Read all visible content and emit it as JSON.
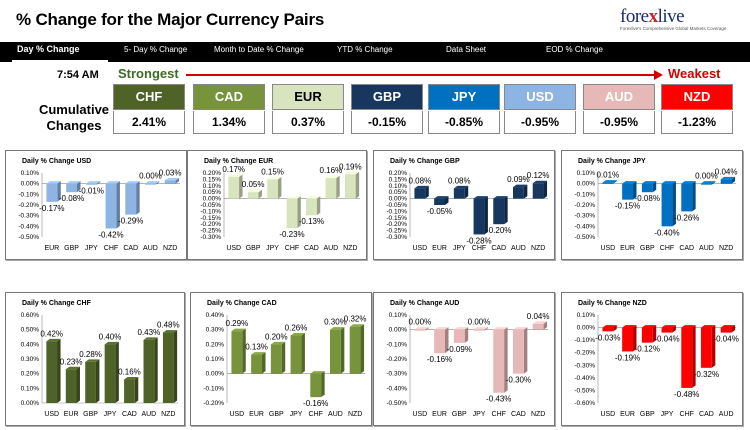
{
  "header": {
    "title": "% Change for the Major Currency Pairs",
    "logo_text": "forexlive",
    "logo_tagline": "Forexlive's Comprehensive Global Markets Coverage"
  },
  "tabs": [
    {
      "label": "Day % Change",
      "active": true
    },
    {
      "label": "5- Day % Change"
    },
    {
      "label": "Month to Date % Change"
    },
    {
      "label": "YTD % Change"
    },
    {
      "label": "Data Sheet"
    },
    {
      "label": "EOD % Change"
    }
  ],
  "summary": {
    "time": "7:54 AM",
    "strongest_label": "Strongest",
    "weakest_label": "Weakest",
    "cumulative_label": "Cumulative Changes",
    "currencies": [
      {
        "code": "CHF",
        "value": "2.41%",
        "color": "#4f6228",
        "light": false
      },
      {
        "code": "CAD",
        "value": "1.34%",
        "color": "#77933c",
        "light": false
      },
      {
        "code": "EUR",
        "value": "0.37%",
        "color": "#d7e4bd",
        "light": true
      },
      {
        "code": "GBP",
        "value": "-0.15%",
        "color": "#17375e",
        "light": false
      },
      {
        "code": "JPY",
        "value": "-0.85%",
        "color": "#0070c0",
        "light": false
      },
      {
        "code": "USD",
        "value": "-0.95%",
        "color": "#8eb4e3",
        "light": false
      },
      {
        "code": "AUD",
        "value": "-0.95%",
        "color": "#e6b9b8",
        "light": false
      },
      {
        "code": "NZD",
        "value": "-1.23%",
        "color": "#ff0000",
        "light": false
      }
    ]
  },
  "chart_data": [
    {
      "type": "bar",
      "title": "Daily % Change USD",
      "categories": [
        "EUR",
        "GBP",
        "JPY",
        "CHF",
        "CAD",
        "AUD",
        "NZD"
      ],
      "values": [
        -0.17,
        -0.08,
        -0.01,
        -0.42,
        -0.29,
        0.0,
        0.03
      ],
      "labels": [
        "-0.17%",
        "-0.08%",
        "-0.01%",
        "-0.42%",
        "-0.29%",
        "0.00%",
        "0.03%"
      ],
      "ylim": [
        -0.5,
        0.1
      ],
      "ticks": [
        0.1,
        0,
        -0.1,
        -0.2,
        -0.3,
        -0.4,
        -0.5
      ],
      "tick_labels": [
        "0.10%",
        "0.00%",
        "-0.10%",
        "-0.20%",
        "-0.30%",
        "-0.40%",
        "-0.50%"
      ],
      "color": "#8eb4e3"
    },
    {
      "type": "bar",
      "title": "Daily % Change EUR",
      "categories": [
        "USD",
        "GBP",
        "JPY",
        "CHF",
        "CAD",
        "AUD",
        "NZD"
      ],
      "values": [
        0.17,
        0.05,
        0.15,
        -0.23,
        -0.13,
        0.16,
        0.19
      ],
      "labels": [
        "0.17%",
        "0.05%",
        "0.15%",
        "-0.23%",
        "-0.13%",
        "0.16%",
        "0.19%"
      ],
      "ylim": [
        -0.3,
        0.2
      ],
      "ticks": [
        0.2,
        0.15,
        0.1,
        0.05,
        0,
        -0.05,
        -0.1,
        -0.15,
        -0.2,
        -0.25,
        -0.3
      ],
      "tick_labels": [
        "0.20%",
        "0.15%",
        "0.10%",
        "0.05%",
        "0.00%",
        "-0.05%",
        "-0.10%",
        "-0.15%",
        "-0.20%",
        "-0.25%",
        "-0.30%"
      ],
      "color": "#d7e4bd"
    },
    {
      "type": "bar",
      "title": "Daily % Change GBP",
      "categories": [
        "USD",
        "EUR",
        "JPY",
        "CHF",
        "CAD",
        "AUD",
        "NZD"
      ],
      "values": [
        0.08,
        -0.05,
        0.08,
        -0.28,
        -0.2,
        0.09,
        0.12
      ],
      "labels": [
        "0.08%",
        "-0.05%",
        "0.08%",
        "-0.28%",
        "-0.20%",
        "0.09%",
        "0.12%"
      ],
      "ylim": [
        -0.3,
        0.2
      ],
      "ticks": [
        0.2,
        0.15,
        0.1,
        0.05,
        0,
        -0.05,
        -0.1,
        -0.15,
        -0.2,
        -0.25,
        -0.3
      ],
      "tick_labels": [
        "0.20%",
        "0.15%",
        "0.10%",
        "0.05%",
        "0.00%",
        "-0.05%",
        "-0.10%",
        "-0.15%",
        "-0.20%",
        "-0.25%",
        "-0.30%"
      ],
      "color": "#17375e"
    },
    {
      "type": "bar",
      "title": "Daily % Change JPY",
      "categories": [
        "USD",
        "EUR",
        "GBP",
        "CHF",
        "CAD",
        "AUD",
        "NZD"
      ],
      "values": [
        0.01,
        -0.15,
        -0.08,
        -0.4,
        -0.26,
        0.0,
        0.04
      ],
      "labels": [
        "0.01%",
        "-0.15%",
        "-0.08%",
        "-0.40%",
        "-0.26%",
        "0.00%",
        "0.04%"
      ],
      "ylim": [
        -0.5,
        0.1
      ],
      "ticks": [
        0.1,
        0,
        -0.1,
        -0.2,
        -0.3,
        -0.4,
        -0.5
      ],
      "tick_labels": [
        "0.10%",
        "0.00%",
        "-0.10%",
        "-0.20%",
        "-0.30%",
        "-0.40%",
        "-0.50%"
      ],
      "color": "#0070c0"
    },
    {
      "type": "bar",
      "title": "Daily % Change CHF",
      "categories": [
        "USD",
        "EUR",
        "GBP",
        "JPY",
        "CAD",
        "AUD",
        "NZD"
      ],
      "values": [
        0.42,
        0.23,
        0.28,
        0.4,
        0.16,
        0.43,
        0.48
      ],
      "labels": [
        "0.42%",
        "0.23%",
        "0.28%",
        "0.40%",
        "0.16%",
        "0.43%",
        "0.48%"
      ],
      "ylim": [
        0,
        0.6
      ],
      "ticks": [
        0.6,
        0.5,
        0.4,
        0.3,
        0.2,
        0.1,
        0
      ],
      "tick_labels": [
        "0.60%",
        "0.50%",
        "0.40%",
        "0.30%",
        "0.20%",
        "0.10%",
        "0.00%"
      ],
      "color": "#4f6228"
    },
    {
      "type": "bar",
      "title": "Daily % Change CAD",
      "categories": [
        "USD",
        "EUR",
        "GBP",
        "JPY",
        "CHF",
        "AUD",
        "NZD"
      ],
      "values": [
        0.29,
        0.13,
        0.2,
        0.26,
        -0.16,
        0.3,
        0.32
      ],
      "labels": [
        "0.29%",
        "0.13%",
        "0.20%",
        "0.26%",
        "-0.16%",
        "0.30%",
        "0.32%"
      ],
      "ylim": [
        -0.2,
        0.4
      ],
      "ticks": [
        0.4,
        0.3,
        0.2,
        0.1,
        0,
        -0.1,
        -0.2
      ],
      "tick_labels": [
        "0.40%",
        "0.30%",
        "0.20%",
        "0.10%",
        "0.00%",
        "-0.10%",
        "-0.20%"
      ],
      "color": "#77933c"
    },
    {
      "type": "bar",
      "title": "Daily % Change AUD",
      "categories": [
        "USD",
        "EUR",
        "GBP",
        "JPY",
        "CHF",
        "CAD",
        "NZD"
      ],
      "values": [
        0.0,
        -0.16,
        -0.09,
        0.0,
        -0.43,
        -0.3,
        0.04
      ],
      "labels": [
        "0.00%",
        "-0.16%",
        "-0.09%",
        "0.00%",
        "-0.43%",
        "-0.30%",
        "0.04%"
      ],
      "ylim": [
        -0.5,
        0.1
      ],
      "ticks": [
        0.1,
        0,
        -0.1,
        -0.2,
        -0.3,
        -0.4,
        -0.5
      ],
      "tick_labels": [
        "0.10%",
        "0.00%",
        "-0.10%",
        "-0.20%",
        "-0.30%",
        "-0.40%",
        "-0.50%"
      ],
      "color": "#e6b9b8"
    },
    {
      "type": "bar",
      "title": "Daily % Change NZD",
      "categories": [
        "USD",
        "EUR",
        "GBP",
        "JPY",
        "CHF",
        "CAD",
        "AUD"
      ],
      "values": [
        -0.03,
        -0.19,
        -0.12,
        -0.04,
        -0.48,
        -0.32,
        -0.04
      ],
      "labels": [
        "-0.03%",
        "-0.19%",
        "-0.12%",
        "-0.04%",
        "-0.48%",
        "-0.32%",
        "-0.04%"
      ],
      "ylim": [
        -0.6,
        0.1
      ],
      "ticks": [
        0.1,
        0,
        -0.1,
        -0.2,
        -0.3,
        -0.4,
        -0.5,
        -0.6
      ],
      "tick_labels": [
        "0.10%",
        "0.00%",
        "-0.10%",
        "-0.20%",
        "-0.30%",
        "-0.40%",
        "-0.50%",
        "-0.60%"
      ],
      "color": "#ff0000"
    }
  ]
}
